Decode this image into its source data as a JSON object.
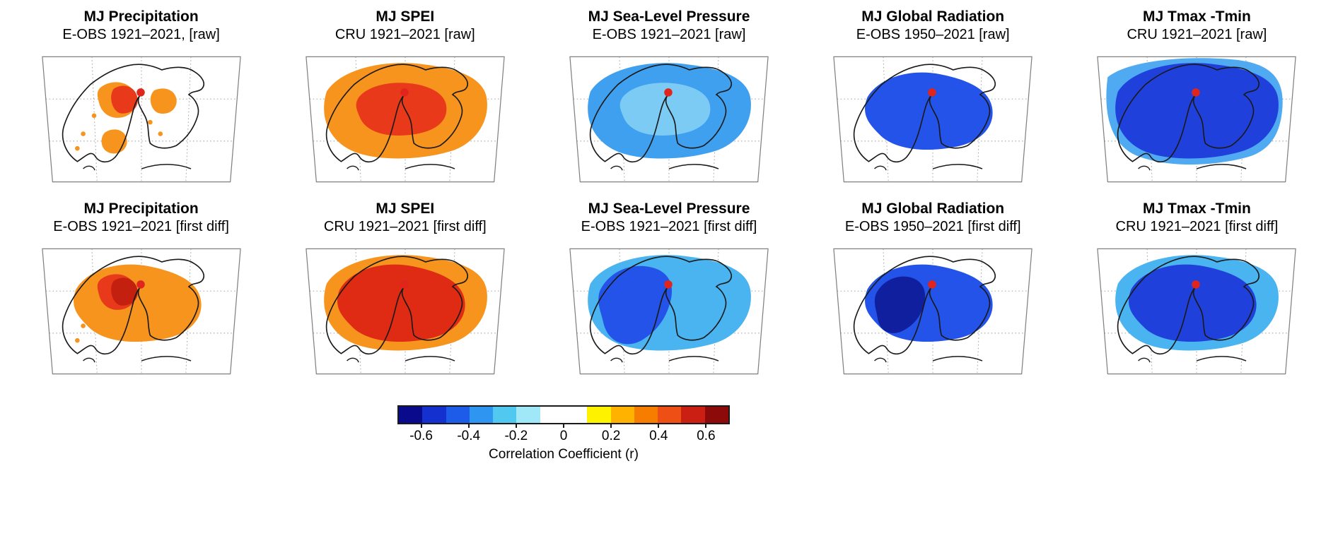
{
  "figure": {
    "panels": [
      {
        "title": "MJ Precipitation",
        "subtitle": "E-OBS 1921–2021, [raw]",
        "layers": [
          {
            "shape": "scatterA",
            "color": "#F7941E"
          },
          {
            "shape": "scatterB",
            "color": "#F7941E"
          },
          {
            "shape": "scatterC",
            "color": "#F7941E"
          },
          {
            "shape": "speckles",
            "color": "#F7941E"
          },
          {
            "shape": "coreSmall",
            "color": "#E8391B"
          }
        ]
      },
      {
        "title": "MJ SPEI",
        "subtitle": "CRU 1921–2021 [raw]",
        "layers": [
          {
            "shape": "large",
            "color": "#F7941E"
          },
          {
            "shape": "core",
            "color": "#E8391B"
          }
        ]
      },
      {
        "title": "MJ Sea-Level Pressure",
        "subtitle": "E-OBS 1921–2021 [raw]",
        "layers": [
          {
            "shape": "large",
            "color": "#3FA0EF"
          },
          {
            "shape": "core",
            "color": "#7CCBF4"
          }
        ]
      },
      {
        "title": "MJ Global Radiation",
        "subtitle": "E-OBS 1950–2021 [raw]",
        "layers": [
          {
            "shape": "mid",
            "color": "#2353E8"
          }
        ]
      },
      {
        "title": "MJ Tmax -Tmin",
        "subtitle": "CRU 1921–2021 [raw]",
        "layers": [
          {
            "shape": "huge",
            "color": "#4FAAF2"
          },
          {
            "shape": "large",
            "color": "#2040DC"
          }
        ]
      },
      {
        "title": "MJ Precipitation",
        "subtitle": "E-OBS 1921–2021 [first diff]",
        "layers": [
          {
            "shape": "mid",
            "color": "#F7941E"
          },
          {
            "shape": "speckles",
            "color": "#F7941E"
          },
          {
            "shape": "scatterA",
            "color": "#E8391B"
          },
          {
            "shape": "coreSmall",
            "color": "#C42010"
          }
        ]
      },
      {
        "title": "MJ SPEI",
        "subtitle": "CRU 1921–2021 [first diff]",
        "layers": [
          {
            "shape": "large",
            "color": "#F7941E"
          },
          {
            "shape": "mid",
            "color": "#DF2A14"
          }
        ]
      },
      {
        "title": "MJ Sea-Level Pressure",
        "subtitle": "E-OBS 1921–2021 [first diff]",
        "layers": [
          {
            "shape": "large",
            "color": "#49B4F0"
          },
          {
            "shape": "west",
            "color": "#2353E8"
          }
        ]
      },
      {
        "title": "MJ Global Radiation",
        "subtitle": "E-OBS 1950–2021 [first diff]",
        "layers": [
          {
            "shape": "mid",
            "color": "#2353E8"
          },
          {
            "shape": "westCore",
            "color": "#101F9E"
          }
        ]
      },
      {
        "title": "MJ Tmax -Tmin",
        "subtitle": "CRU 1921–2021 [first diff]",
        "layers": [
          {
            "shape": "large",
            "color": "#49B4F0"
          },
          {
            "shape": "mid",
            "color": "#2040DC"
          }
        ]
      }
    ],
    "map": {
      "marker_color": "#E0251C",
      "coast_color": "#1a1a1a",
      "frame_color": "#808080",
      "grid_color": "#999999"
    },
    "colorbar": {
      "label": "Correlation Coefficient (r)",
      "range": [
        -0.7,
        0.7
      ],
      "tick_values": [
        -0.6,
        -0.4,
        -0.2,
        0,
        0.2,
        0.4,
        0.6
      ],
      "tick_labels": [
        "-0.6",
        "-0.4",
        "-0.2",
        "0",
        "0.2",
        "0.4",
        "0.6"
      ],
      "segments": [
        "#0A0A8C",
        "#1430CE",
        "#1C5CE8",
        "#2E96F0",
        "#50C8F0",
        "#A0E8F8",
        "#FFFFFF",
        "#FFFFFF",
        "#FFF200",
        "#FFB300",
        "#F67D00",
        "#EE4F14",
        "#CB1F14",
        "#8C0A0A"
      ]
    }
  }
}
